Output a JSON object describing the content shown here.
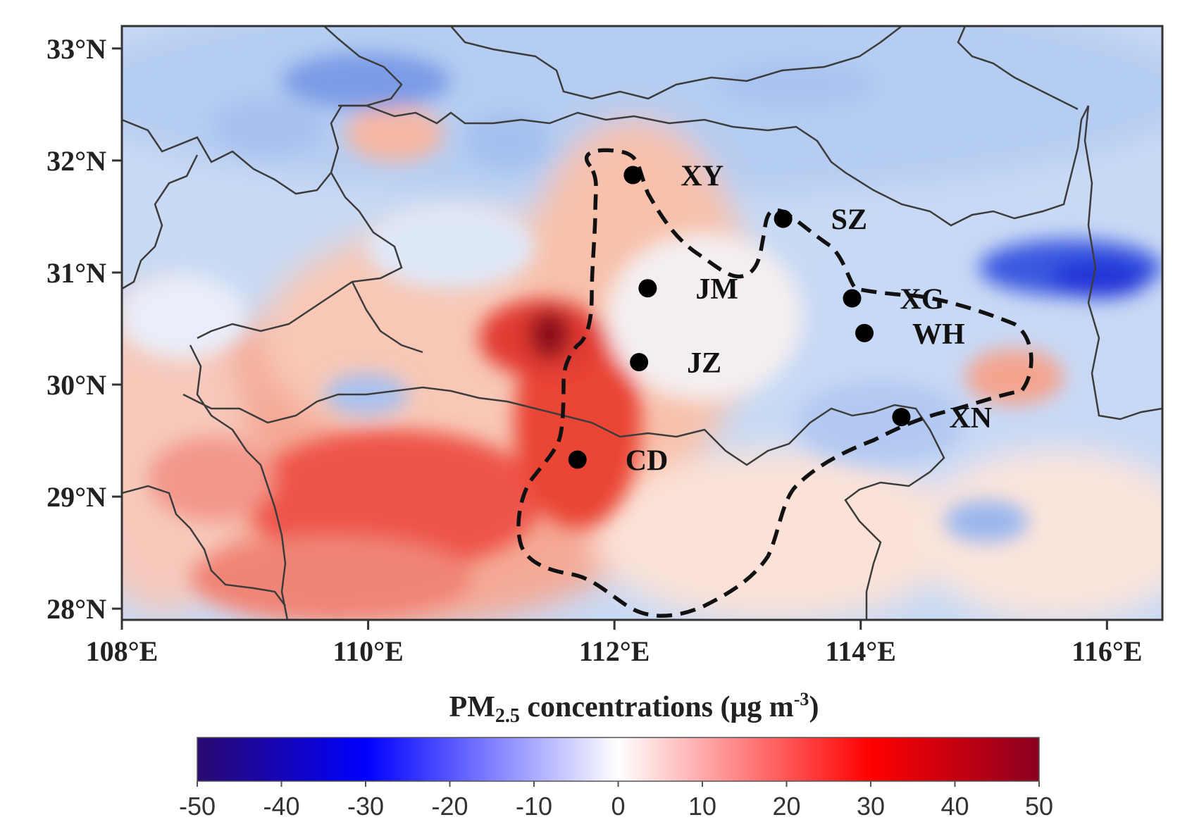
{
  "map": {
    "lat_ticks": [
      "33°N",
      "32°N",
      "31°N",
      "30°N",
      "29°N",
      "28°N"
    ],
    "lon_ticks": [
      "108°E",
      "110°E",
      "112°E",
      "114°E",
      "116°E"
    ],
    "cities": [
      {
        "code": "XY",
        "lon": 112.15,
        "lat": 31.87
      },
      {
        "code": "SZ",
        "lon": 113.37,
        "lat": 31.48
      },
      {
        "code": "JM",
        "lon": 112.27,
        "lat": 30.86
      },
      {
        "code": "XG",
        "lon": 113.93,
        "lat": 30.77
      },
      {
        "code": "WH",
        "lon": 114.03,
        "lat": 30.46
      },
      {
        "code": "JZ",
        "lon": 112.2,
        "lat": 30.2
      },
      {
        "code": "XN",
        "lon": 114.33,
        "lat": 29.71
      },
      {
        "code": "CD",
        "lon": 111.7,
        "lat": 29.33
      }
    ],
    "lon_range": [
      108,
      116.45
    ],
    "lat_range": [
      27.9,
      33.2
    ]
  },
  "colorbar": {
    "title_main": "PM",
    "title_sub": "2.5",
    "title_rest": " concentrations (μg m",
    "title_sup": "-3",
    "title_end": ")",
    "ticks": [
      "-50",
      "-40",
      "-30",
      "-20",
      "-10",
      "0",
      "10",
      "20",
      "30",
      "40",
      "50"
    ],
    "range": [
      -50,
      50
    ],
    "colors": [
      "#2a0a70",
      "#0000ff",
      "#ffffff",
      "#ff0000",
      "#8b0020"
    ]
  }
}
